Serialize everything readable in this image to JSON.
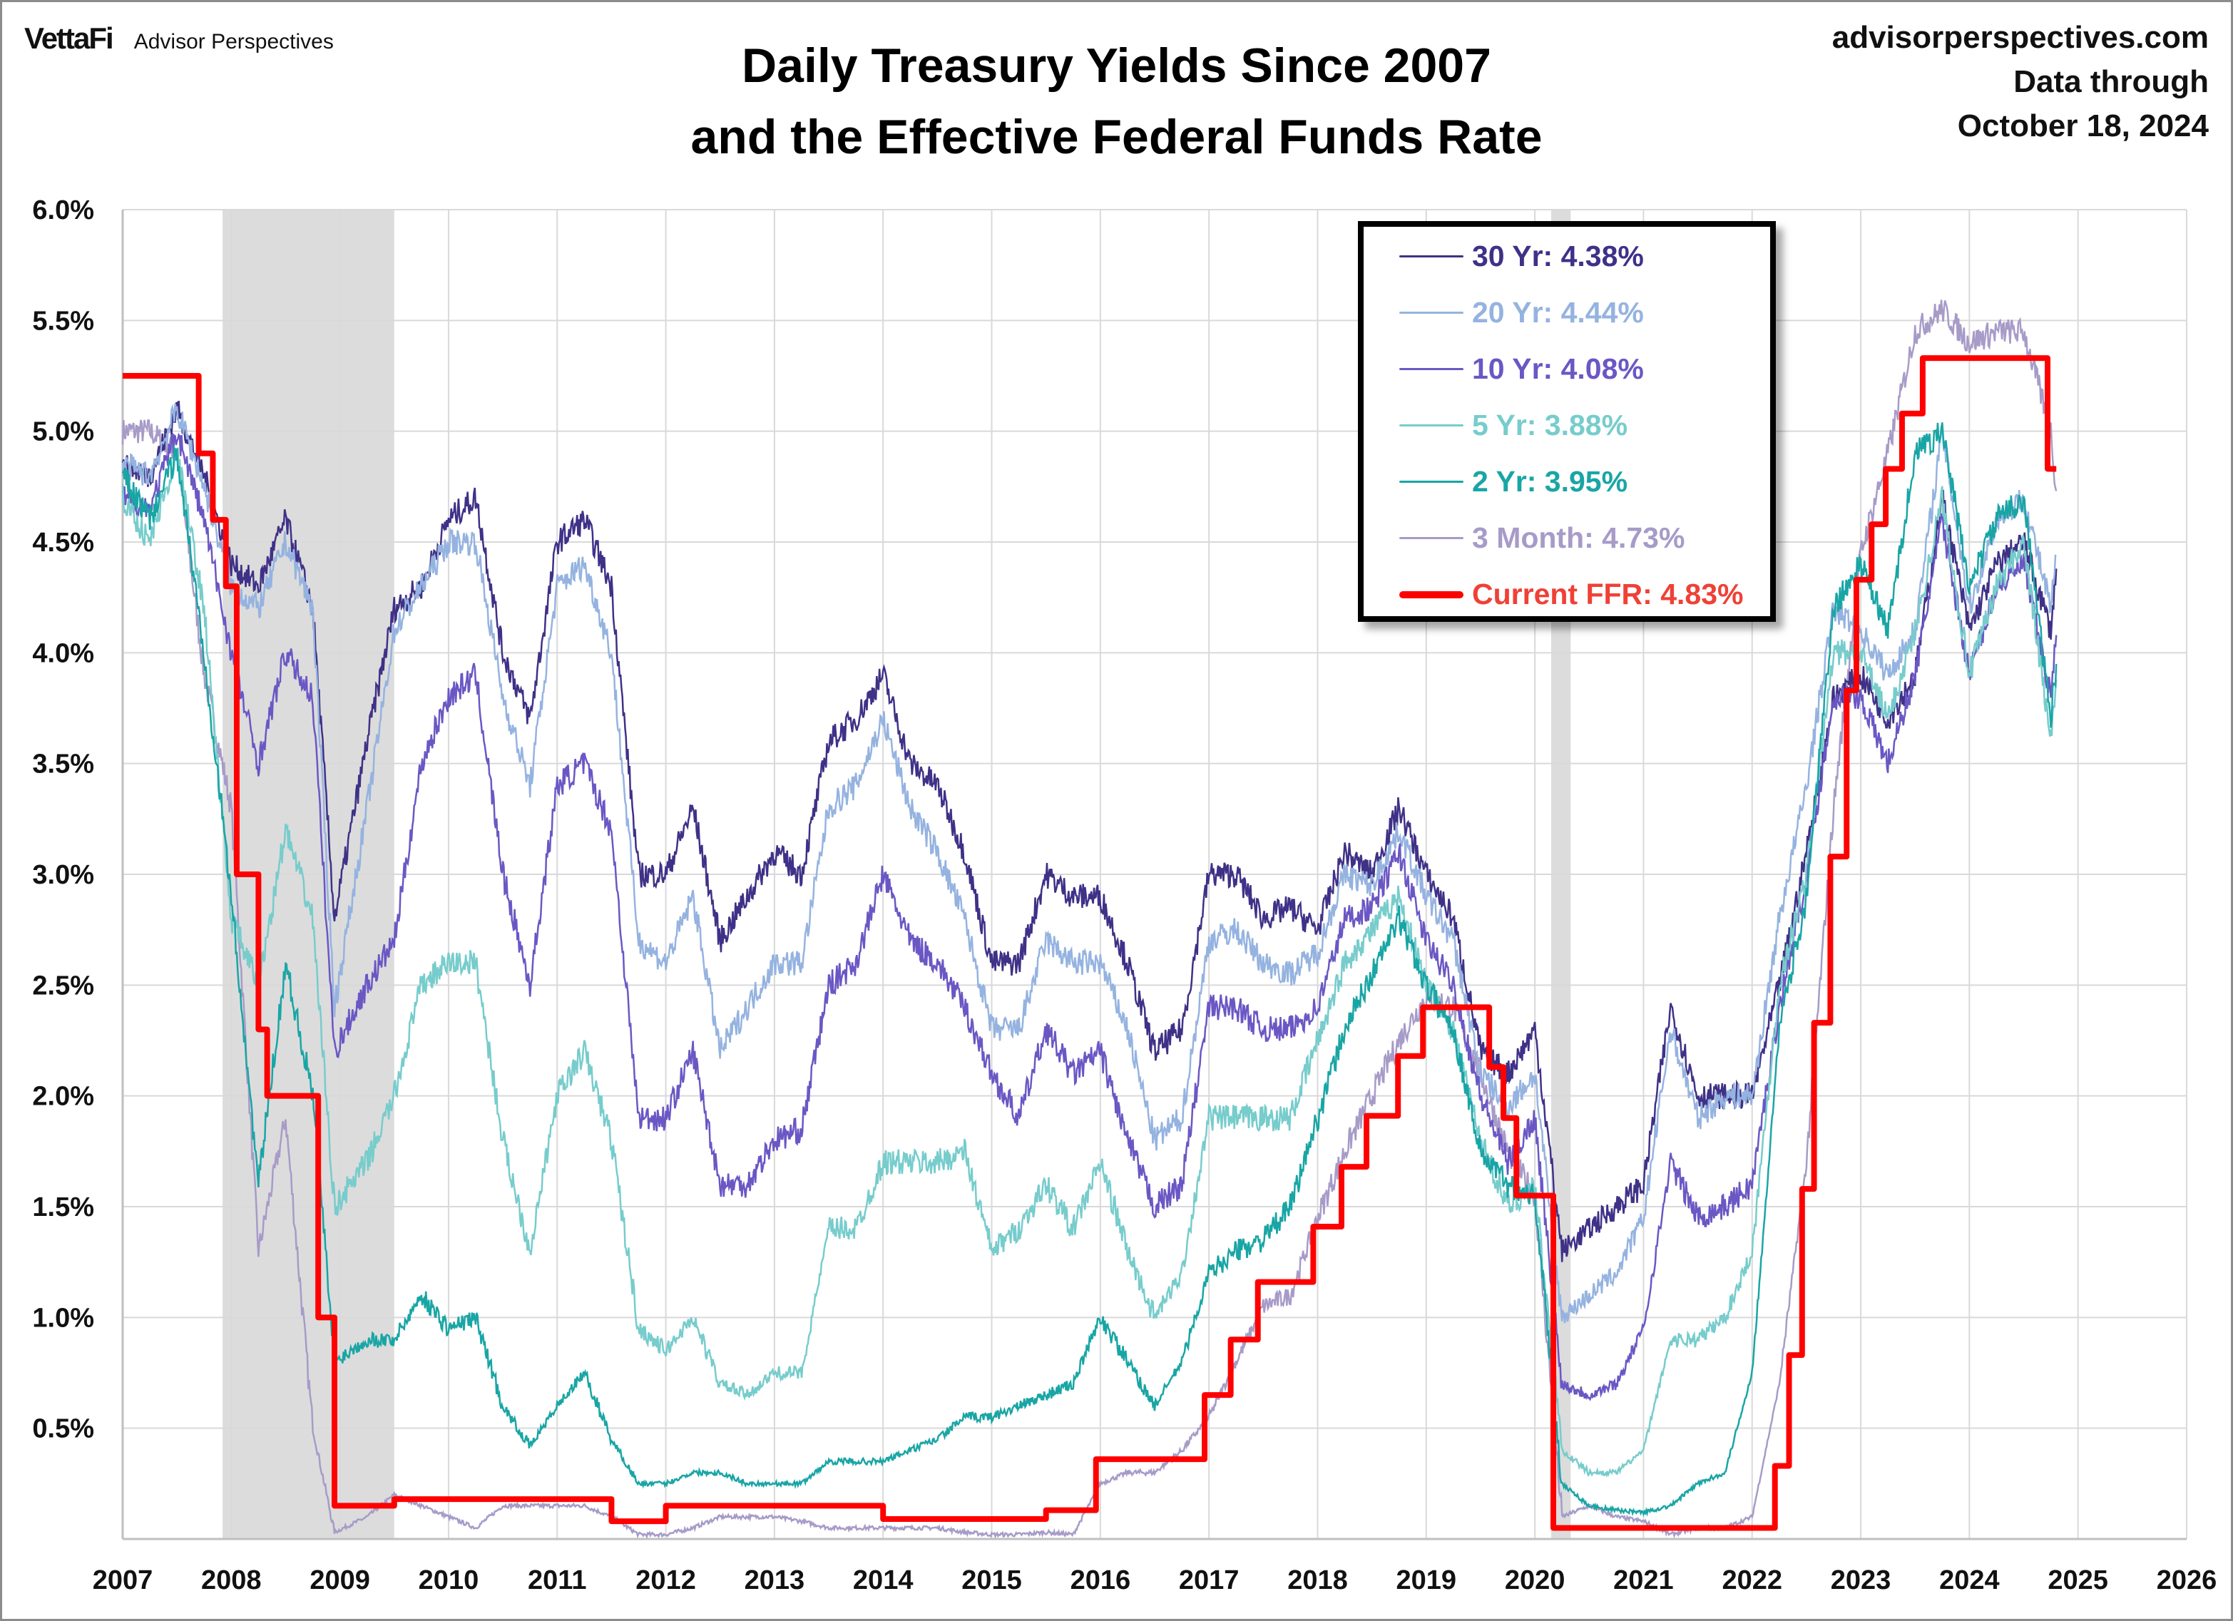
{
  "header": {
    "logo": "VettaFi",
    "brand": "Advisor Perspectives",
    "site": "advisorperspectives.com",
    "data_through_label": "Data through",
    "data_through_date": "October 18, 2024"
  },
  "chart_data": {
    "type": "line",
    "title": "Daily Treasury Yields Since 2007",
    "subtitle": "and the Effective Federal Funds Rate",
    "xlim": [
      2007,
      2026
    ],
    "ylim": [
      0,
      6
    ],
    "grid": true,
    "legend_position": "top-right",
    "x_tick_labels": [
      "2007",
      "2008",
      "2009",
      "2010",
      "2011",
      "2012",
      "2013",
      "2014",
      "2015",
      "2016",
      "2017",
      "2018",
      "2019",
      "2020",
      "2021",
      "2022",
      "2023",
      "2024",
      "2025",
      "2026"
    ],
    "y_tick_labels": [
      "0.5%",
      "1.0%",
      "1.5%",
      "2.0%",
      "2.5%",
      "3.0%",
      "3.5%",
      "4.0%",
      "4.5%",
      "5.0%",
      "5.5%",
      "6.0%"
    ],
    "recessions": [
      [
        2007.92,
        2009.5
      ],
      [
        2020.15,
        2020.33
      ]
    ],
    "x": [
      2007.0,
      2007.25,
      2007.5,
      2007.75,
      2008.0,
      2008.25,
      2008.5,
      2008.75,
      2008.95,
      2009.25,
      2009.5,
      2009.75,
      2010.0,
      2010.25,
      2010.5,
      2010.75,
      2011.0,
      2011.25,
      2011.5,
      2011.75,
      2012.0,
      2012.25,
      2012.5,
      2012.75,
      2013.0,
      2013.25,
      2013.5,
      2013.75,
      2014.0,
      2014.25,
      2014.5,
      2014.75,
      2015.0,
      2015.25,
      2015.5,
      2015.75,
      2016.0,
      2016.25,
      2016.5,
      2016.75,
      2017.0,
      2017.25,
      2017.5,
      2017.75,
      2018.0,
      2018.25,
      2018.5,
      2018.75,
      2019.0,
      2019.25,
      2019.5,
      2019.75,
      2020.0,
      2020.25,
      2020.5,
      2020.75,
      2021.0,
      2021.25,
      2021.5,
      2021.75,
      2022.0,
      2022.25,
      2022.5,
      2022.75,
      2023.0,
      2023.25,
      2023.5,
      2023.75,
      2024.0,
      2024.25,
      2024.5,
      2024.75,
      2024.8
    ],
    "series": [
      {
        "name": "30 Yr",
        "legend": "30 Yr: 4.38%",
        "color": "#3f3187",
        "values": [
          4.85,
          4.8,
          5.1,
          4.8,
          4.4,
          4.3,
          4.6,
          4.2,
          2.8,
          3.6,
          4.2,
          4.3,
          4.6,
          4.7,
          4.0,
          3.7,
          4.5,
          4.6,
          4.3,
          3.0,
          3.0,
          3.3,
          2.7,
          2.9,
          3.1,
          3.0,
          3.6,
          3.7,
          3.9,
          3.5,
          3.4,
          3.1,
          2.6,
          2.6,
          3.0,
          2.9,
          2.9,
          2.6,
          2.2,
          2.3,
          3.0,
          3.0,
          2.8,
          2.85,
          2.75,
          3.1,
          3.0,
          3.3,
          3.0,
          2.8,
          2.2,
          2.1,
          2.3,
          1.3,
          1.4,
          1.5,
          1.6,
          2.4,
          2.0,
          2.0,
          2.0,
          2.5,
          3.1,
          3.8,
          3.9,
          3.7,
          3.9,
          4.7,
          4.1,
          4.4,
          4.5,
          4.1,
          4.38
        ]
      },
      {
        "name": "20 Yr",
        "legend": "20 Yr: 4.44%",
        "color": "#95b3e0",
        "values": [
          4.85,
          4.8,
          5.1,
          4.75,
          4.3,
          4.2,
          4.5,
          4.2,
          2.4,
          3.3,
          4.1,
          4.3,
          4.5,
          4.5,
          3.8,
          3.4,
          4.3,
          4.4,
          4.0,
          2.7,
          2.6,
          2.9,
          2.2,
          2.4,
          2.6,
          2.6,
          3.3,
          3.4,
          3.7,
          3.3,
          3.1,
          2.8,
          2.3,
          2.3,
          2.7,
          2.6,
          2.6,
          2.3,
          1.8,
          1.9,
          2.7,
          2.75,
          2.6,
          2.55,
          2.65,
          3.0,
          2.95,
          3.2,
          2.9,
          2.7,
          2.1,
          1.95,
          2.1,
          1.0,
          1.1,
          1.2,
          1.45,
          2.3,
          1.9,
          2.0,
          2.0,
          2.8,
          3.4,
          4.2,
          4.1,
          3.9,
          4.1,
          5.0,
          4.2,
          4.6,
          4.7,
          4.2,
          4.44
        ]
      },
      {
        "name": "10 Yr",
        "legend": "10 Yr: 4.08%",
        "color": "#6b57c4",
        "values": [
          4.7,
          4.65,
          5.0,
          4.6,
          4.0,
          3.5,
          4.0,
          3.8,
          2.2,
          2.5,
          2.7,
          3.5,
          3.8,
          3.9,
          3.0,
          2.5,
          3.4,
          3.5,
          3.2,
          1.9,
          1.9,
          2.2,
          1.6,
          1.6,
          1.8,
          1.85,
          2.5,
          2.6,
          3.0,
          2.7,
          2.6,
          2.4,
          2.1,
          1.9,
          2.3,
          2.1,
          2.2,
          1.8,
          1.5,
          1.6,
          2.4,
          2.4,
          2.3,
          2.3,
          2.4,
          2.8,
          2.85,
          3.1,
          2.7,
          2.5,
          2.0,
          1.7,
          1.9,
          0.7,
          0.65,
          0.7,
          0.95,
          1.7,
          1.45,
          1.5,
          1.6,
          2.4,
          3.0,
          3.8,
          3.8,
          3.5,
          3.9,
          4.6,
          3.9,
          4.3,
          4.4,
          3.8,
          4.08
        ]
      },
      {
        "name": "5 Yr",
        "legend": "5 Yr: 3.88%",
        "color": "#77cccc",
        "values": [
          4.7,
          4.5,
          4.9,
          4.2,
          2.8,
          2.5,
          3.2,
          2.8,
          1.5,
          1.7,
          2.0,
          2.5,
          2.6,
          2.6,
          1.8,
          1.3,
          2.0,
          2.2,
          1.8,
          0.95,
          0.85,
          1.0,
          0.7,
          0.65,
          0.75,
          0.75,
          1.4,
          1.4,
          1.7,
          1.7,
          1.7,
          1.75,
          1.3,
          1.4,
          1.6,
          1.4,
          1.7,
          1.3,
          1.0,
          1.2,
          1.9,
          1.9,
          1.9,
          1.9,
          2.25,
          2.6,
          2.75,
          2.9,
          2.5,
          2.3,
          1.8,
          1.5,
          1.6,
          0.4,
          0.3,
          0.3,
          0.4,
          0.9,
          0.9,
          1.0,
          1.3,
          2.5,
          3.0,
          4.0,
          4.0,
          3.7,
          4.1,
          4.7,
          3.9,
          4.3,
          4.5,
          3.6,
          3.88
        ]
      },
      {
        "name": "2 Yr",
        "legend": "2 Yr: 3.95%",
        "color": "#1aa5a5",
        "values": [
          4.8,
          4.6,
          4.9,
          4.0,
          2.9,
          1.6,
          2.6,
          2.0,
          0.8,
          0.9,
          0.9,
          1.1,
          0.95,
          1.0,
          0.6,
          0.42,
          0.6,
          0.75,
          0.45,
          0.25,
          0.25,
          0.3,
          0.3,
          0.25,
          0.25,
          0.25,
          0.35,
          0.35,
          0.35,
          0.4,
          0.45,
          0.55,
          0.55,
          0.6,
          0.65,
          0.7,
          1.0,
          0.8,
          0.6,
          0.8,
          1.2,
          1.3,
          1.35,
          1.5,
          1.9,
          2.3,
          2.55,
          2.8,
          2.5,
          2.3,
          1.75,
          1.6,
          1.55,
          0.25,
          0.15,
          0.13,
          0.12,
          0.15,
          0.25,
          0.3,
          0.75,
          2.3,
          2.9,
          4.2,
          4.4,
          4.1,
          4.9,
          5.0,
          4.3,
          4.6,
          4.7,
          3.7,
          3.95
        ]
      },
      {
        "name": "3 Month",
        "legend": "3 Month: 4.73%",
        "color": "#a79bc8",
        "values": [
          5.0,
          5.0,
          4.9,
          3.9,
          3.3,
          1.3,
          1.9,
          0.5,
          0.03,
          0.1,
          0.2,
          0.15,
          0.1,
          0.05,
          0.15,
          0.15,
          0.15,
          0.15,
          0.1,
          0.02,
          0.02,
          0.05,
          0.1,
          0.1,
          0.1,
          0.08,
          0.05,
          0.05,
          0.05,
          0.05,
          0.05,
          0.03,
          0.02,
          0.02,
          0.03,
          0.02,
          0.25,
          0.3,
          0.3,
          0.4,
          0.55,
          0.8,
          1.05,
          1.1,
          1.45,
          1.75,
          2.0,
          2.25,
          2.45,
          2.4,
          2.1,
          1.75,
          1.55,
          0.1,
          0.15,
          0.1,
          0.08,
          0.02,
          0.05,
          0.05,
          0.1,
          0.7,
          1.7,
          3.3,
          4.45,
          4.9,
          5.45,
          5.55,
          5.4,
          5.45,
          5.45,
          5.0,
          4.73
        ]
      }
    ],
    "ffr": {
      "name": "Current FFR",
      "legend": "Current FFR: 4.83%",
      "color": "#ff0000",
      "text_color": "#ef4136",
      "steps": [
        [
          2007.0,
          5.25
        ],
        [
          2007.7,
          4.9
        ],
        [
          2007.83,
          4.6
        ],
        [
          2007.95,
          4.3
        ],
        [
          2008.05,
          3.0
        ],
        [
          2008.25,
          2.3
        ],
        [
          2008.33,
          2.0
        ],
        [
          2008.8,
          1.0
        ],
        [
          2008.95,
          0.15
        ],
        [
          2009.5,
          0.18
        ],
        [
          2011.5,
          0.08
        ],
        [
          2012.0,
          0.15
        ],
        [
          2014.0,
          0.09
        ],
        [
          2015.5,
          0.13
        ],
        [
          2015.96,
          0.36
        ],
        [
          2016.96,
          0.65
        ],
        [
          2017.2,
          0.9
        ],
        [
          2017.45,
          1.16
        ],
        [
          2017.96,
          1.41
        ],
        [
          2018.22,
          1.68
        ],
        [
          2018.45,
          1.91
        ],
        [
          2018.74,
          2.18
        ],
        [
          2018.97,
          2.4
        ],
        [
          2019.58,
          2.13
        ],
        [
          2019.71,
          1.9
        ],
        [
          2019.83,
          1.55
        ],
        [
          2020.17,
          0.05
        ],
        [
          2022.21,
          0.33
        ],
        [
          2022.34,
          0.83
        ],
        [
          2022.46,
          1.58
        ],
        [
          2022.57,
          2.33
        ],
        [
          2022.72,
          3.08
        ],
        [
          2022.87,
          3.83
        ],
        [
          2022.96,
          4.33
        ],
        [
          2023.1,
          4.58
        ],
        [
          2023.23,
          4.83
        ],
        [
          2023.38,
          5.08
        ],
        [
          2023.57,
          5.33
        ],
        [
          2024.72,
          4.83
        ],
        [
          2024.8,
          4.83
        ]
      ]
    }
  }
}
